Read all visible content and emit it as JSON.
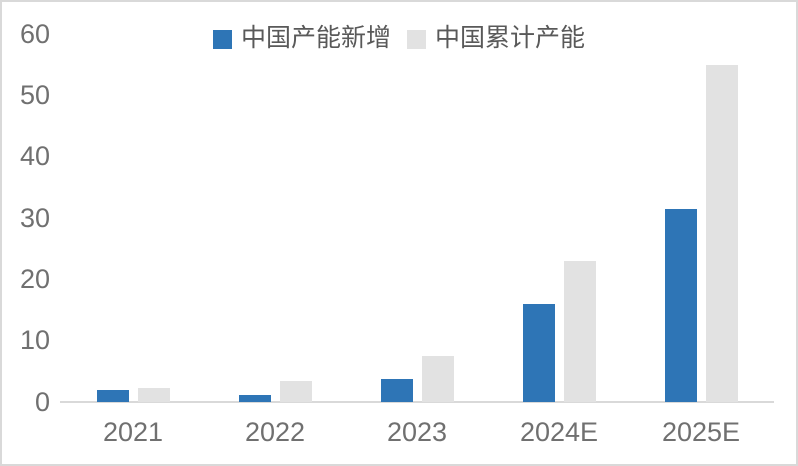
{
  "chart_data": {
    "type": "bar",
    "title": "",
    "categories": [
      "2021",
      "2022",
      "2023",
      "2024E",
      "2025E"
    ],
    "series": [
      {
        "name": "中国产能新增",
        "color": "#2e75b6",
        "values": [
          2,
          1.2,
          3.7,
          16,
          31.5
        ]
      },
      {
        "name": "中国累计产能",
        "color": "#e2e2e2",
        "values": [
          2.3,
          3.5,
          7.5,
          23,
          55
        ]
      }
    ],
    "xlabel": "",
    "ylabel": "",
    "ylim": [
      0,
      60
    ],
    "yticks": [
      0,
      10,
      20,
      30,
      40,
      50,
      60
    ],
    "grid": false,
    "legend_position": "top"
  },
  "colors": {
    "axis_line": "#d9d9d9",
    "tick_label": "#707070",
    "legend_text": "#595959",
    "frame_border": "#d9d9d9",
    "background": "#ffffff"
  }
}
